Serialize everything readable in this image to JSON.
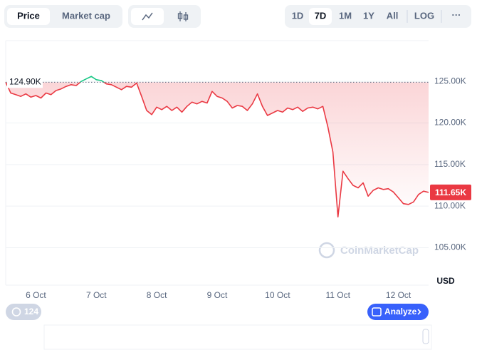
{
  "toolbar": {
    "views": [
      "Price",
      "Market cap"
    ],
    "ranges": [
      "1D",
      "7D",
      "1M",
      "1Y",
      "All"
    ],
    "scale": "LOG",
    "more": "···"
  },
  "currency": "USD",
  "watermark": "CoinMarketCap",
  "badge": "124",
  "analyze": "Analyze",
  "chart_data": {
    "type": "line",
    "categories": [
      null,
      null,
      null,
      null,
      null,
      null,
      "6 Oct",
      null,
      null,
      null,
      null,
      null,
      null,
      null,
      null,
      null,
      null,
      null,
      "7 Oct",
      null,
      null,
      null,
      null,
      null,
      null,
      null,
      null,
      null,
      null,
      null,
      "8 Oct",
      null,
      null,
      null,
      null,
      null,
      null,
      null,
      null,
      null,
      null,
      null,
      "9 Oct",
      null,
      null,
      null,
      null,
      null,
      null,
      null,
      null,
      null,
      null,
      null,
      "10 Oct",
      null,
      null,
      null,
      null,
      null,
      null,
      null,
      null,
      null,
      null,
      null,
      "11 Oct",
      null,
      null,
      null,
      null,
      null,
      null,
      null,
      null,
      null,
      null,
      null,
      "12 Oct",
      null,
      null,
      null,
      null,
      null,
      null
    ],
    "series": [
      {
        "name": "Price",
        "color": "#ea3943",
        "color_above_reference": "#16c784",
        "values": [
          124900,
          123600,
          123400,
          123200,
          123500,
          123100,
          123300,
          123000,
          123600,
          123400,
          123900,
          124100,
          124400,
          124600,
          124500,
          125000,
          125300,
          125600,
          125200,
          125100,
          124700,
          124600,
          124300,
          124000,
          124400,
          124300,
          124800,
          123200,
          121500,
          121000,
          121900,
          121600,
          122000,
          121500,
          121900,
          121300,
          122000,
          122500,
          122300,
          122600,
          122400,
          123800,
          123200,
          123000,
          122600,
          121800,
          122100,
          122000,
          121500,
          122300,
          123500,
          122000,
          120900,
          121200,
          121500,
          121300,
          121800,
          121600,
          121900,
          121400,
          121800,
          121900,
          121700,
          122000,
          119500,
          116500,
          108700,
          114200,
          113300,
          112500,
          112200,
          112800,
          111200,
          111900,
          112200,
          112000,
          112100,
          111700,
          111000,
          110300,
          110200,
          110500,
          111400,
          111800,
          111650
        ]
      }
    ],
    "reference_price": {
      "value": 124900,
      "label": "124.90K"
    },
    "current_price": {
      "value": 111650,
      "label": "111.65K"
    },
    "ylim": [
      100500,
      129900
    ],
    "yticks": [
      {
        "value": 105000,
        "label": "105.00K"
      },
      {
        "value": 110000,
        "label": "110.00K"
      },
      {
        "value": 115000,
        "label": "115.00K"
      },
      {
        "value": 120000,
        "label": "120.00K"
      },
      {
        "value": 125000,
        "label": "125.00K"
      }
    ],
    "grid": true
  }
}
